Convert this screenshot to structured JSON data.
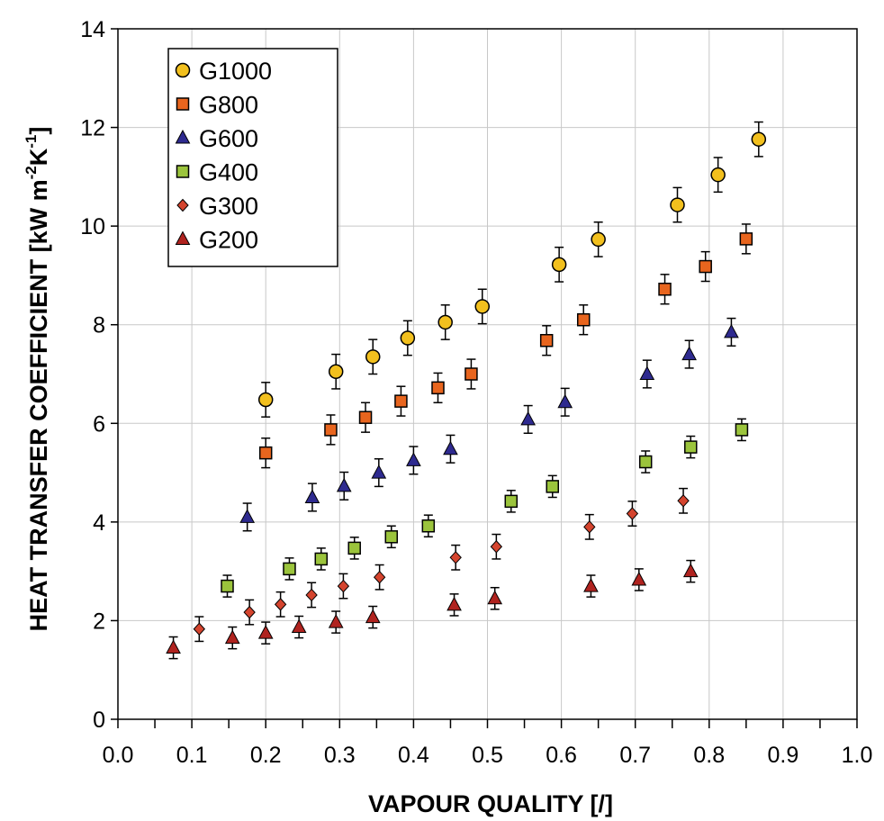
{
  "chart_data": {
    "type": "scatter",
    "xlabel": "VAPOUR QUALITY [/]",
    "ylabel": {
      "prefix": "HEAT TRANSFER COEFFICIENT [kW m",
      "sup1": "-2",
      "mid": "K",
      "sup2": "-1",
      "suffix": "]"
    },
    "xlim": [
      0.0,
      1.0
    ],
    "ylim": [
      0,
      14
    ],
    "xticks": [
      "0.0",
      "0.1",
      "0.2",
      "0.3",
      "0.4",
      "0.5",
      "0.6",
      "0.7",
      "0.8",
      "0.9",
      "1.0"
    ],
    "yticks": [
      "0",
      "2",
      "4",
      "6",
      "8",
      "10",
      "12",
      "14"
    ],
    "grid": true,
    "legend_position": "top-left",
    "series": [
      {
        "name": "G1000",
        "marker": "circle",
        "color": "#f2c01e",
        "error": 0.35,
        "x": [
          0.2,
          0.295,
          0.345,
          0.392,
          0.443,
          0.493,
          0.597,
          0.65,
          0.757,
          0.812,
          0.867
        ],
        "y": [
          6.48,
          7.05,
          7.35,
          7.73,
          8.05,
          8.37,
          9.22,
          9.73,
          10.43,
          11.04,
          11.76
        ]
      },
      {
        "name": "G800",
        "marker": "square",
        "color": "#e8651e",
        "error": 0.3,
        "x": [
          0.2,
          0.288,
          0.335,
          0.383,
          0.433,
          0.478,
          0.58,
          0.63,
          0.74,
          0.795,
          0.85
        ],
        "y": [
          5.4,
          5.87,
          6.12,
          6.45,
          6.72,
          7.0,
          7.68,
          8.1,
          8.72,
          9.18,
          9.74
        ]
      },
      {
        "name": "G600",
        "marker": "triangle",
        "color": "#2e2a8f",
        "error": 0.28,
        "x": [
          0.175,
          0.263,
          0.306,
          0.353,
          0.4,
          0.45,
          0.555,
          0.605,
          0.716,
          0.773,
          0.83
        ],
        "y": [
          4.1,
          4.5,
          4.73,
          5.0,
          5.25,
          5.48,
          6.08,
          6.43,
          7.0,
          7.4,
          7.85
        ]
      },
      {
        "name": "G400",
        "marker": "square",
        "color": "#9bc43c",
        "error": 0.22,
        "x": [
          0.148,
          0.232,
          0.275,
          0.32,
          0.37,
          0.42,
          0.532,
          0.588,
          0.714,
          0.775,
          0.844
        ],
        "y": [
          2.7,
          3.05,
          3.25,
          3.47,
          3.7,
          3.92,
          4.42,
          4.72,
          5.22,
          5.52,
          5.87
        ]
      },
      {
        "name": "G300",
        "marker": "diamond",
        "color": "#d4442e",
        "error": 0.25,
        "x": [
          0.11,
          0.178,
          0.22,
          0.262,
          0.305,
          0.354,
          0.457,
          0.512,
          0.638,
          0.696,
          0.765
        ],
        "y": [
          1.83,
          2.17,
          2.33,
          2.52,
          2.7,
          2.88,
          3.28,
          3.5,
          3.9,
          4.17,
          4.43
        ]
      },
      {
        "name": "G200",
        "marker": "triangle",
        "color": "#b0231f",
        "error": 0.22,
        "x": [
          0.075,
          0.155,
          0.2,
          0.245,
          0.295,
          0.345,
          0.455,
          0.51,
          0.64,
          0.705,
          0.775
        ],
        "y": [
          1.45,
          1.65,
          1.75,
          1.87,
          1.97,
          2.07,
          2.32,
          2.45,
          2.7,
          2.83,
          3.0
        ]
      }
    ]
  }
}
